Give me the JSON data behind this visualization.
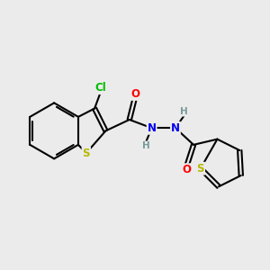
{
  "background_color": "#ebebeb",
  "atom_colors": {
    "C": "#000000",
    "S": "#b8b800",
    "Cl": "#00bb00",
    "O": "#ff0000",
    "N": "#0000ee",
    "H": "#7a9a9a"
  },
  "bond_color": "#000000",
  "bond_width": 1.5,
  "font_size_atoms": 8.5,
  "font_size_H": 7.5
}
